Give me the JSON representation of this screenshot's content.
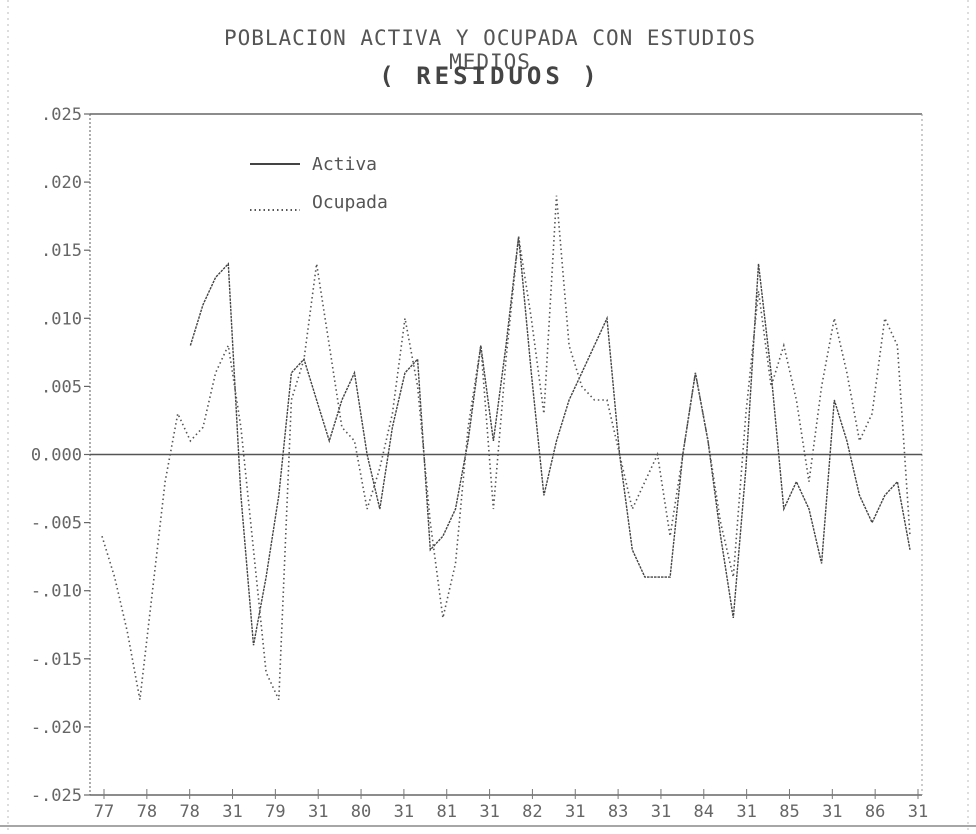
{
  "chart_data": {
    "type": "line",
    "title": "POBLACION ACTIVA Y OCUPADA CON ESTUDIOS MEDIOS",
    "subtitle": "( RESIDUOS )",
    "xlabel": "",
    "ylabel": "",
    "ylim": [
      -0.025,
      0.025
    ],
    "y_ticks": [
      ".025",
      ".020",
      ".015",
      ".010",
      ".005",
      "0.000",
      "-.005",
      "-.010",
      "-.015",
      "-.020",
      "-.025"
    ],
    "y_tick_values": [
      0.025,
      0.02,
      0.015,
      0.01,
      0.005,
      0.0,
      -0.005,
      -0.01,
      -0.015,
      -0.02,
      -0.025
    ],
    "x_tick_labels": [
      "77",
      "78",
      "78",
      "31",
      "79",
      "31",
      "80",
      "31",
      "81",
      "31",
      "82",
      "31",
      "83",
      "31",
      "84",
      "31",
      "85",
      "31",
      "86",
      "31"
    ],
    "n_points": 65,
    "legend": {
      "placement": "top-left",
      "entries": [
        "Activa",
        "Ocupada"
      ]
    },
    "series": [
      {
        "name": "Activa",
        "style": "solid",
        "color": "#444444",
        "values": [
          null,
          null,
          null,
          null,
          null,
          null,
          null,
          0.008,
          0.011,
          0.013,
          0.014,
          -0.003,
          -0.014,
          -0.009,
          -0.003,
          0.006,
          0.007,
          0.004,
          0.001,
          0.004,
          0.006,
          0.0,
          -0.004,
          0.002,
          0.006,
          0.007,
          -0.007,
          -0.006,
          -0.004,
          0.001,
          0.008,
          0.001,
          0.008,
          0.016,
          0.006,
          -0.003,
          0.001,
          0.004,
          0.006,
          0.008,
          0.01,
          0.0,
          -0.007,
          -0.009,
          -0.009,
          -0.009,
          0.0,
          0.006,
          0.001,
          -0.006,
          -0.012,
          -0.001,
          0.014,
          0.006,
          -0.004,
          -0.002,
          -0.004,
          -0.008,
          0.004,
          0.001,
          -0.003,
          -0.005,
          -0.003,
          -0.002,
          -0.007
        ]
      },
      {
        "name": "Ocupada",
        "style": "dotted",
        "color": "#555555",
        "values": [
          -0.006,
          -0.009,
          -0.013,
          -0.018,
          -0.01,
          -0.002,
          0.003,
          0.001,
          0.002,
          0.006,
          0.008,
          0.002,
          -0.007,
          -0.016,
          -0.018,
          0.004,
          0.007,
          0.014,
          0.008,
          0.002,
          0.001,
          -0.004,
          -0.001,
          0.003,
          0.01,
          0.005,
          -0.005,
          -0.012,
          -0.008,
          0.002,
          0.008,
          -0.004,
          0.007,
          0.016,
          0.01,
          0.003,
          0.019,
          0.008,
          0.005,
          0.004,
          0.004,
          0.0,
          -0.004,
          -0.002,
          0.0,
          -0.006,
          0.0,
          0.006,
          0.001,
          -0.005,
          -0.009,
          0.003,
          0.012,
          0.005,
          0.008,
          0.004,
          -0.002,
          0.005,
          0.01,
          0.006,
          0.001,
          0.003,
          0.01,
          0.008,
          -0.006
        ]
      }
    ]
  }
}
